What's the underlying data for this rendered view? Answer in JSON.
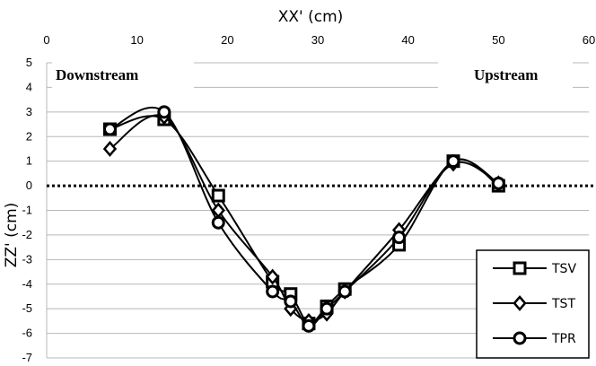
{
  "chart_data": {
    "type": "line",
    "title": "",
    "xlabel": "XX' (cm)",
    "ylabel": "ZZ' (cm)",
    "xlim": [
      0,
      60
    ],
    "ylim": [
      -7,
      5
    ],
    "x_ticks": [
      0,
      10,
      20,
      30,
      40,
      50,
      60
    ],
    "y_ticks": [
      5,
      4,
      3,
      2,
      1,
      0,
      -1,
      -2,
      -3,
      -4,
      -5,
      -6,
      -7
    ],
    "x_axis_position": "top",
    "grid": "horizontal",
    "reference_line": {
      "y": 0,
      "style": "dotted"
    },
    "annotations": [
      {
        "text": "Downstream",
        "x": 2,
        "y": 4.5
      },
      {
        "text": "Upstream",
        "x": 53,
        "y": 4.5
      }
    ],
    "legend_position": "bottom-right",
    "series": [
      {
        "name": "TSV",
        "marker": "square",
        "x": [
          7,
          13,
          19,
          25,
          27,
          29,
          31,
          33,
          39,
          45,
          50
        ],
        "y": [
          2.3,
          2.7,
          -0.4,
          -3.9,
          -4.4,
          -5.6,
          -4.9,
          -4.2,
          -2.4,
          1.0,
          0.0
        ]
      },
      {
        "name": "TST",
        "marker": "diamond",
        "x": [
          7,
          13,
          19,
          25,
          27,
          29,
          31,
          33,
          39,
          45,
          50
        ],
        "y": [
          1.5,
          2.8,
          -1.0,
          -3.7,
          -5.0,
          -5.5,
          -5.2,
          -4.3,
          -1.8,
          0.9,
          0.1
        ]
      },
      {
        "name": "TPR",
        "marker": "circle",
        "x": [
          7,
          13,
          19,
          25,
          27,
          29,
          31,
          33,
          39,
          45,
          50
        ],
        "y": [
          2.3,
          3.0,
          -1.5,
          -4.3,
          -4.7,
          -5.7,
          -5.0,
          -4.3,
          -2.1,
          1.0,
          0.1
        ]
      }
    ]
  }
}
